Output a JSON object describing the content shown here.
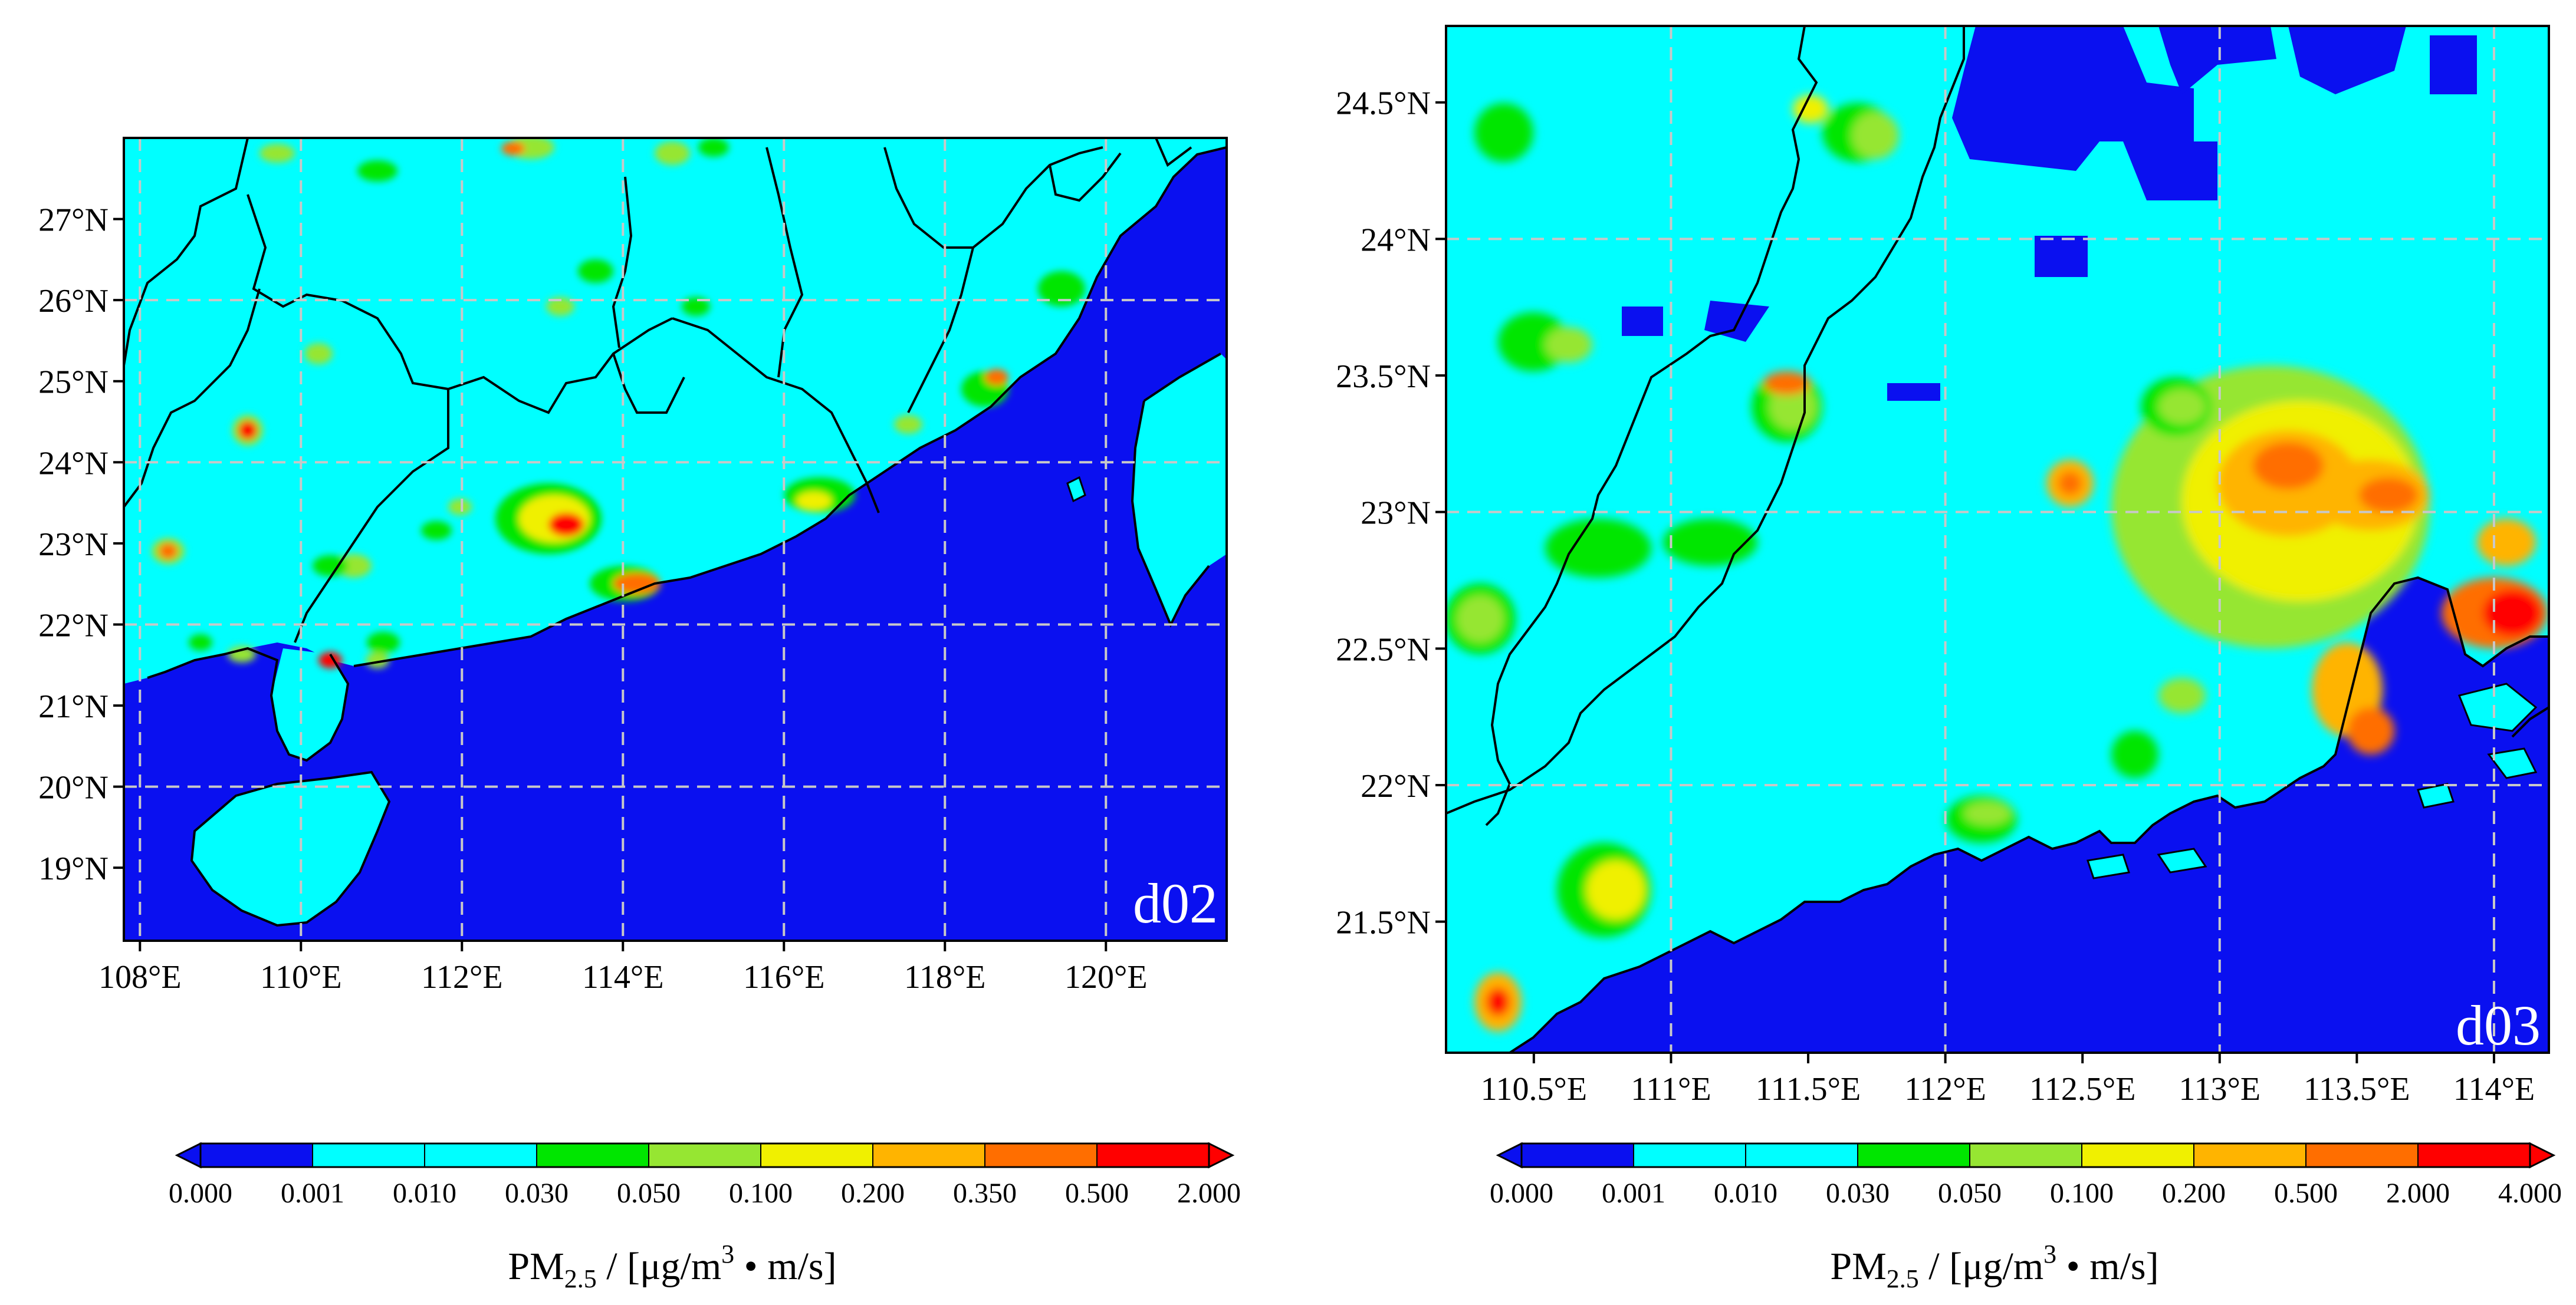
{
  "panels": [
    {
      "id": "d02",
      "label": "d02",
      "lon_range": [
        107.8,
        121.5
      ],
      "lat_range": [
        18.1,
        28.0
      ],
      "lon_ticks": [
        108,
        110,
        112,
        114,
        116,
        118,
        120
      ],
      "lon_tick_labels": [
        "108°E",
        "110°E",
        "112°E",
        "114°E",
        "116°E",
        "118°E",
        "120°E"
      ],
      "lat_ticks": [
        19,
        20,
        21,
        22,
        23,
        24,
        25,
        26,
        27
      ],
      "lat_tick_labels": [
        "19°N",
        "20°N",
        "21°N",
        "22°N",
        "23°N",
        "24°N",
        "25°N",
        "26°N",
        "27°N"
      ],
      "gridlines_lon": [
        108,
        110,
        112,
        114,
        116,
        118,
        120
      ],
      "gridlines_lat": [
        20,
        22,
        24,
        26
      ],
      "colorbar": {
        "levels": [
          "0.000",
          "0.001",
          "0.010",
          "0.030",
          "0.050",
          "0.100",
          "0.200",
          "0.350",
          "0.500",
          "2.000"
        ],
        "colors": [
          "#0a10f0",
          "#00ffff",
          "#00ffff",
          "#00e600",
          "#96e632",
          "#f0f000",
          "#ffb400",
          "#ff6e00",
          "#ff0000"
        ],
        "under_color": "#0a10f0",
        "over_color": "#ff0000",
        "title_main": "PM",
        "title_sub": "2.5",
        "title_unit": "  /  [μg/m",
        "title_sup": "3",
        "title_end": " • m/s]"
      }
    },
    {
      "id": "d03",
      "label": "d03",
      "lon_range": [
        110.18,
        114.2
      ],
      "lat_range": [
        21.02,
        24.78
      ],
      "lon_ticks": [
        110.5,
        111,
        111.5,
        112,
        112.5,
        113,
        113.5,
        114
      ],
      "lon_tick_labels": [
        "110.5°E",
        "111°E",
        "111.5°E",
        "112°E",
        "112.5°E",
        "113°E",
        "113.5°E",
        "114°E"
      ],
      "lat_ticks": [
        21.5,
        22,
        22.5,
        23,
        23.5,
        24,
        24.5
      ],
      "lat_tick_labels": [
        "21.5°N",
        "22°N",
        "22.5°N",
        "23°N",
        "23.5°N",
        "24°N",
        "24.5°N"
      ],
      "gridlines_lon": [
        111,
        112,
        113,
        114
      ],
      "gridlines_lat": [
        22,
        23,
        24
      ],
      "colorbar": {
        "levels": [
          "0.000",
          "0.001",
          "0.010",
          "0.030",
          "0.050",
          "0.100",
          "0.200",
          "0.500",
          "2.000",
          "4.000"
        ],
        "colors": [
          "#0a10f0",
          "#00ffff",
          "#00ffff",
          "#00e600",
          "#96e632",
          "#f0f000",
          "#ffb400",
          "#ff6e00",
          "#ff0000"
        ],
        "under_color": "#0a10f0",
        "over_color": "#ff0000",
        "title_main": "PM",
        "title_sub": "2.5",
        "title_unit": "  /  [μg/m",
        "title_sup": "3",
        "title_end": " • m/s]"
      }
    }
  ],
  "palette": {
    "sea": "#0a10f0",
    "land_base": "#00ffff",
    "low": "#00e600",
    "mid": "#96e632",
    "high": "#f0f000",
    "higher": "#ffb400",
    "very_high": "#ff6e00",
    "extreme": "#ff0000",
    "grid": "#c8c8c8",
    "border": "#000000"
  }
}
